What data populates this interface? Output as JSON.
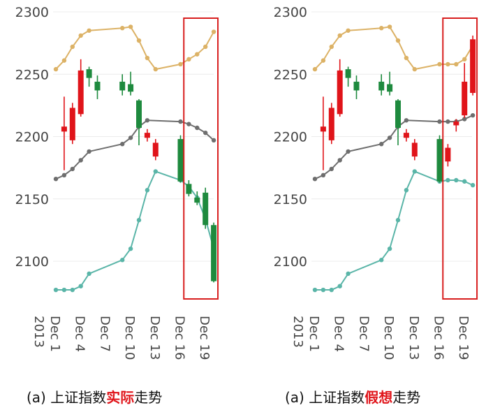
{
  "colors": {
    "up": "#e0141a",
    "down": "#1e8a3e",
    "ma_short": "#dcb266",
    "ma_mid": "#6e6e6e",
    "ma_long": "#5ab5a8",
    "highlight_box": "#d81e1e",
    "grid": "#ececec"
  },
  "chart_data": [
    {
      "type": "candlestick",
      "caption": {
        "prefix": "(a) 上证指数",
        "highlight": "实际",
        "suffix": "走势"
      },
      "ylim": [
        2070,
        2300
      ],
      "y_ticks": [
        2100,
        2150,
        2200,
        2250,
        2300
      ],
      "x_ticks": [
        {
          "day": 1,
          "label": "Dec 1",
          "sublabel": "2013"
        },
        {
          "day": 4,
          "label": "Dec 4"
        },
        {
          "day": 7,
          "label": "Dec 7"
        },
        {
          "day": 10,
          "label": "Dec 10"
        },
        {
          "day": 13,
          "label": "Dec 13"
        },
        {
          "day": 16,
          "label": "Dec 16"
        },
        {
          "day": 19,
          "label": "Dec 19"
        }
      ],
      "highlight_range": [
        16.4,
        20.5
      ],
      "candles": [
        {
          "day": 2,
          "open": 2204,
          "high": 2232,
          "low": 2173,
          "close": 2208
        },
        {
          "day": 3,
          "open": 2197,
          "high": 2227,
          "low": 2194,
          "close": 2223
        },
        {
          "day": 4,
          "open": 2218,
          "high": 2262,
          "low": 2216,
          "close": 2253
        },
        {
          "day": 5,
          "open": 2254,
          "high": 2256,
          "low": 2240,
          "close": 2247
        },
        {
          "day": 6,
          "open": 2244,
          "high": 2249,
          "low": 2230,
          "close": 2237
        },
        {
          "day": 9,
          "open": 2244,
          "high": 2250,
          "low": 2233,
          "close": 2237
        },
        {
          "day": 10,
          "open": 2242,
          "high": 2252,
          "low": 2233,
          "close": 2236
        },
        {
          "day": 11,
          "open": 2229,
          "high": 2230,
          "low": 2193,
          "close": 2207
        },
        {
          "day": 12,
          "open": 2199,
          "high": 2206,
          "low": 2196,
          "close": 2203
        },
        {
          "day": 13,
          "open": 2184,
          "high": 2198,
          "low": 2181,
          "close": 2195
        },
        {
          "day": 16,
          "open": 2198,
          "high": 2201,
          "low": 2163,
          "close": 2164
        },
        {
          "day": 17,
          "open": 2162,
          "high": 2165,
          "low": 2152,
          "close": 2154
        },
        {
          "day": 18,
          "open": 2151,
          "high": 2156,
          "low": 2145,
          "close": 2147
        },
        {
          "day": 19,
          "open": 2155,
          "high": 2159,
          "low": 2126,
          "close": 2129
        },
        {
          "day": 20,
          "open": 2129,
          "high": 2131,
          "low": 2083,
          "close": 2084
        }
      ],
      "ma_lines": [
        {
          "key": "ma_short",
          "points": [
            [
              1,
              2254
            ],
            [
              2,
              2261
            ],
            [
              3,
              2272
            ],
            [
              4,
              2281
            ],
            [
              5,
              2285
            ],
            [
              9,
              2287
            ],
            [
              10,
              2288
            ],
            [
              11,
              2277
            ],
            [
              12,
              2263
            ],
            [
              13,
              2254
            ],
            [
              16,
              2258
            ],
            [
              17,
              2262
            ],
            [
              18,
              2266
            ],
            [
              19,
              2272
            ],
            [
              20,
              2284
            ]
          ]
        },
        {
          "key": "ma_mid",
          "points": [
            [
              1,
              2166
            ],
            [
              2,
              2169
            ],
            [
              3,
              2174
            ],
            [
              4,
              2181
            ],
            [
              5,
              2188
            ],
            [
              9,
              2194
            ],
            [
              10,
              2199
            ],
            [
              11,
              2208
            ],
            [
              12,
              2213
            ],
            [
              16,
              2212
            ],
            [
              17,
              2210
            ],
            [
              18,
              2207
            ],
            [
              19,
              2203
            ],
            [
              20,
              2197
            ]
          ]
        },
        {
          "key": "ma_long",
          "points": [
            [
              1,
              2077
            ],
            [
              2,
              2077
            ],
            [
              3,
              2077
            ],
            [
              4,
              2080
            ],
            [
              5,
              2090
            ],
            [
              9,
              2101
            ],
            [
              10,
              2110
            ],
            [
              11,
              2133
            ],
            [
              12,
              2157
            ],
            [
              13,
              2172
            ],
            [
              16,
              2165
            ],
            [
              17,
              2160
            ],
            [
              18,
              2151
            ],
            [
              19,
              2134
            ],
            [
              20,
              2110
            ]
          ]
        }
      ]
    },
    {
      "type": "candlestick",
      "caption": {
        "prefix": "(a) 上证指数",
        "highlight": "假想",
        "suffix": "走势"
      },
      "ylim": [
        2070,
        2300
      ],
      "y_ticks": [
        2100,
        2150,
        2200,
        2250,
        2300
      ],
      "x_ticks": [
        {
          "day": 1,
          "label": "Dec 1",
          "sublabel": "2013"
        },
        {
          "day": 4,
          "label": "Dec 4"
        },
        {
          "day": 7,
          "label": "Dec 7"
        },
        {
          "day": 10,
          "label": "Dec 10"
        },
        {
          "day": 13,
          "label": "Dec 13"
        },
        {
          "day": 16,
          "label": "Dec 16"
        },
        {
          "day": 19,
          "label": "Dec 19"
        }
      ],
      "highlight_range": [
        16.4,
        20.5
      ],
      "candles": [
        {
          "day": 2,
          "open": 2204,
          "high": 2232,
          "low": 2173,
          "close": 2208
        },
        {
          "day": 3,
          "open": 2197,
          "high": 2227,
          "low": 2194,
          "close": 2223
        },
        {
          "day": 4,
          "open": 2218,
          "high": 2262,
          "low": 2216,
          "close": 2253
        },
        {
          "day": 5,
          "open": 2254,
          "high": 2256,
          "low": 2240,
          "close": 2247
        },
        {
          "day": 6,
          "open": 2244,
          "high": 2249,
          "low": 2230,
          "close": 2237
        },
        {
          "day": 9,
          "open": 2244,
          "high": 2250,
          "low": 2233,
          "close": 2237
        },
        {
          "day": 10,
          "open": 2242,
          "high": 2252,
          "low": 2233,
          "close": 2236
        },
        {
          "day": 11,
          "open": 2229,
          "high": 2230,
          "low": 2193,
          "close": 2207
        },
        {
          "day": 12,
          "open": 2199,
          "high": 2206,
          "low": 2196,
          "close": 2203
        },
        {
          "day": 13,
          "open": 2184,
          "high": 2198,
          "low": 2181,
          "close": 2195
        },
        {
          "day": 16,
          "open": 2198,
          "high": 2201,
          "low": 2163,
          "close": 2164
        },
        {
          "day": 17,
          "open": 2180,
          "high": 2194,
          "low": 2176,
          "close": 2191
        },
        {
          "day": 18,
          "open": 2209,
          "high": 2214,
          "low": 2204,
          "close": 2212
        },
        {
          "day": 19,
          "open": 2217,
          "high": 2259,
          "low": 2215,
          "close": 2244
        },
        {
          "day": 20,
          "open": 2235,
          "high": 2281,
          "low": 2233,
          "close": 2278
        }
      ],
      "ma_lines": [
        {
          "key": "ma_short",
          "points": [
            [
              1,
              2254
            ],
            [
              2,
              2261
            ],
            [
              3,
              2272
            ],
            [
              4,
              2281
            ],
            [
              5,
              2285
            ],
            [
              9,
              2287
            ],
            [
              10,
              2288
            ],
            [
              11,
              2277
            ],
            [
              12,
              2263
            ],
            [
              13,
              2254
            ],
            [
              16,
              2258
            ],
            [
              17,
              2258
            ],
            [
              18,
              2258
            ],
            [
              19,
              2262
            ],
            [
              20,
              2273
            ]
          ]
        },
        {
          "key": "ma_mid",
          "points": [
            [
              1,
              2166
            ],
            [
              2,
              2169
            ],
            [
              3,
              2174
            ],
            [
              4,
              2181
            ],
            [
              5,
              2188
            ],
            [
              9,
              2194
            ],
            [
              10,
              2199
            ],
            [
              11,
              2208
            ],
            [
              12,
              2213
            ],
            [
              16,
              2212
            ],
            [
              17,
              2212
            ],
            [
              18,
              2212
            ],
            [
              19,
              2214
            ],
            [
              20,
              2217
            ]
          ]
        },
        {
          "key": "ma_long",
          "points": [
            [
              1,
              2077
            ],
            [
              2,
              2077
            ],
            [
              3,
              2077
            ],
            [
              4,
              2080
            ],
            [
              5,
              2090
            ],
            [
              9,
              2101
            ],
            [
              10,
              2110
            ],
            [
              11,
              2133
            ],
            [
              12,
              2157
            ],
            [
              13,
              2172
            ],
            [
              16,
              2164
            ],
            [
              17,
              2165
            ],
            [
              18,
              2165
            ],
            [
              19,
              2164
            ],
            [
              20,
              2161
            ]
          ]
        }
      ]
    }
  ]
}
